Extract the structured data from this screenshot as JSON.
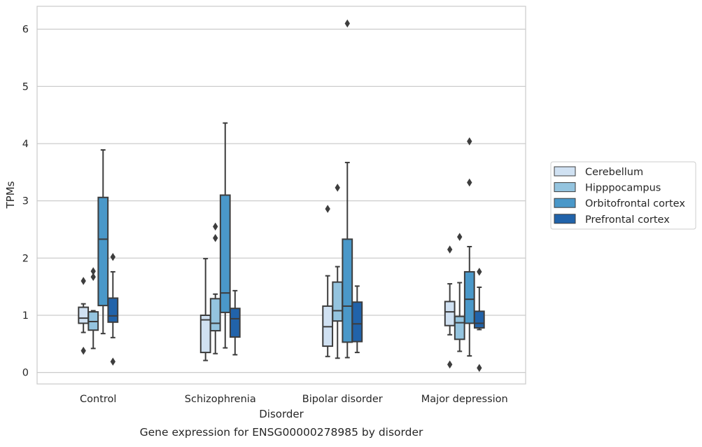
{
  "chart_data": {
    "type": "box",
    "title": "Gene expression for ENSG00000278985 by disorder",
    "xlabel": "Disorder",
    "ylabel": "TPMs",
    "categories": [
      "Control",
      "Schizophrenia",
      "Bipolar disorder",
      "Major depression"
    ],
    "ylim": [
      -0.2,
      6.4
    ],
    "yticks": [
      0,
      1,
      2,
      3,
      4,
      5,
      6
    ],
    "grid": true,
    "legend_position": "right",
    "series": [
      {
        "name": "Cerebellum",
        "color": "#d0e1f2",
        "boxes": [
          {
            "whisker_low": 0.7,
            "q1": 0.86,
            "median": 0.95,
            "q3": 1.14,
            "whisker_high": 1.2,
            "outliers": [
              1.6,
              0.38
            ]
          },
          {
            "whisker_low": 0.21,
            "q1": 0.35,
            "median": 0.92,
            "q3": 1.0,
            "whisker_high": 1.99,
            "outliers": []
          },
          {
            "whisker_low": 0.28,
            "q1": 0.46,
            "median": 0.8,
            "q3": 1.16,
            "whisker_high": 1.69,
            "outliers": [
              2.86
            ]
          },
          {
            "whisker_low": 0.66,
            "q1": 0.82,
            "median": 1.06,
            "q3": 1.24,
            "whisker_high": 1.55,
            "outliers": [
              2.15,
              0.14
            ]
          }
        ]
      },
      {
        "name": "Hipppocampus",
        "color": "#94c4df",
        "boxes": [
          {
            "whisker_low": 0.42,
            "q1": 0.74,
            "median": 0.89,
            "q3": 1.06,
            "whisker_high": 1.08,
            "outliers": [
              1.77,
              1.67
            ]
          },
          {
            "whisker_low": 0.33,
            "q1": 0.73,
            "median": 0.86,
            "q3": 1.29,
            "whisker_high": 1.37,
            "outliers": [
              2.55,
              2.35
            ]
          },
          {
            "whisker_low": 0.25,
            "q1": 0.9,
            "median": 1.08,
            "q3": 1.58,
            "whisker_high": 1.85,
            "outliers": [
              3.23
            ]
          },
          {
            "whisker_low": 0.37,
            "q1": 0.58,
            "median": 0.87,
            "q3": 0.98,
            "whisker_high": 1.57,
            "outliers": [
              2.37
            ]
          }
        ]
      },
      {
        "name": "Orbitofrontal cortex",
        "color": "#4a98c9",
        "boxes": [
          {
            "whisker_low": 0.68,
            "q1": 1.17,
            "median": 2.33,
            "q3": 3.06,
            "whisker_high": 3.89,
            "outliers": []
          },
          {
            "whisker_low": 0.43,
            "q1": 1.05,
            "median": 1.39,
            "q3": 3.1,
            "whisker_high": 4.36,
            "outliers": []
          },
          {
            "whisker_low": 0.26,
            "q1": 0.53,
            "median": 1.16,
            "q3": 2.33,
            "whisker_high": 3.67,
            "outliers": [
              6.1
            ]
          },
          {
            "whisker_low": 0.29,
            "q1": 0.86,
            "median": 1.28,
            "q3": 1.76,
            "whisker_high": 2.2,
            "outliers": [
              4.04,
              3.32
            ]
          }
        ]
      },
      {
        "name": "Prefrontal cortex",
        "color": "#2163aa",
        "boxes": [
          {
            "whisker_low": 0.61,
            "q1": 0.88,
            "median": 0.99,
            "q3": 1.3,
            "whisker_high": 1.76,
            "outliers": [
              2.02,
              0.19
            ]
          },
          {
            "whisker_low": 0.31,
            "q1": 0.62,
            "median": 0.94,
            "q3": 1.12,
            "whisker_high": 1.43,
            "outliers": []
          },
          {
            "whisker_low": 0.35,
            "q1": 0.54,
            "median": 0.85,
            "q3": 1.23,
            "whisker_high": 1.51,
            "outliers": []
          },
          {
            "whisker_low": 0.75,
            "q1": 0.78,
            "median": 0.86,
            "q3": 1.07,
            "whisker_high": 1.49,
            "outliers": [
              1.76,
              0.08
            ]
          }
        ]
      }
    ]
  }
}
